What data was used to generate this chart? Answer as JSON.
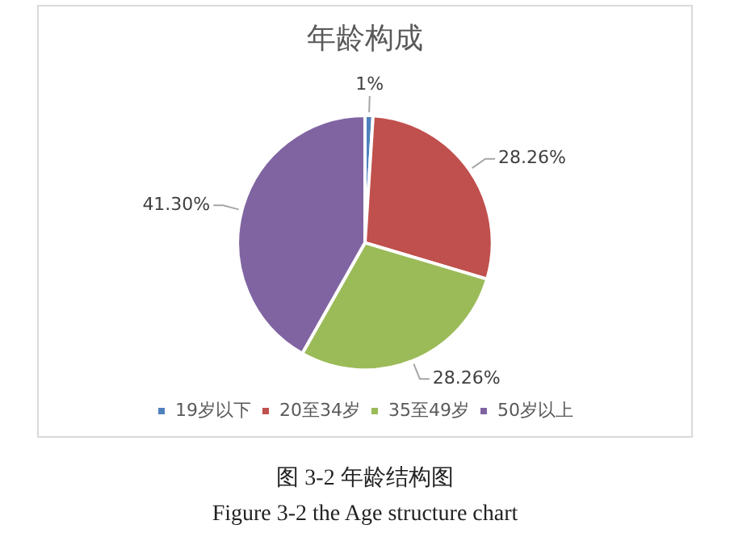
{
  "chart_data": {
    "type": "pie",
    "title": "年龄构成",
    "categories": [
      "19岁以下",
      "20至34岁",
      "35至49岁",
      "50岁以上"
    ],
    "values": [
      1,
      28.26,
      28.26,
      41.3
    ],
    "value_labels": [
      "1%",
      "28.26%",
      "28.26%",
      "41.30%"
    ],
    "colors": [
      "#4f81bd",
      "#c0504d",
      "#9bbb59",
      "#8064a2"
    ],
    "legend": "bottom",
    "annotations": [
      "图  3-2 年龄结构图",
      "Figure 3-2 the Age structure chart"
    ]
  }
}
